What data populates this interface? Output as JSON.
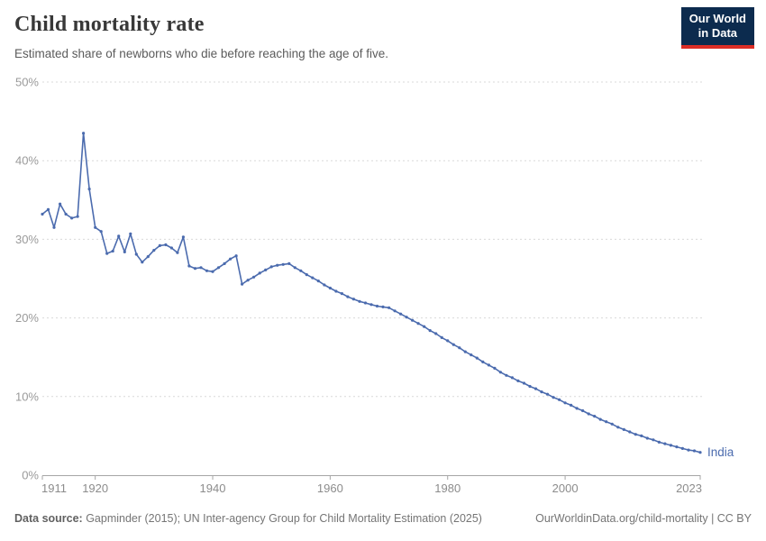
{
  "header": {
    "title": "Child mortality rate",
    "subtitle": "Estimated share of newborns who die before reaching the age of five.",
    "logo_line1": "Our World",
    "logo_line2": "in Data"
  },
  "footer": {
    "source_label": "Data source:",
    "source_text": " Gapminder (2015); UN Inter-agency Group for Child Mortality Estimation (2025)",
    "link_text": "OurWorldinData.org/child-mortality | CC BY"
  },
  "colors": {
    "line": "#4b6bae",
    "entity_label": "#4b6bae",
    "grid": "#d9d9d9",
    "axis": "#a6a6a6",
    "tick_label": "#8c8c8c",
    "y_label": "#9a9a9a",
    "logo_bg": "#0c2b4e",
    "logo_red": "#dc2d25"
  },
  "chart_data": {
    "type": "line",
    "title": "Child mortality rate",
    "subtitle": "Estimated share of newborns who die before reaching the age of five.",
    "entity_label": "India",
    "grid": "horizontal-dashed",
    "legend_position": "end-of-line",
    "xlim": [
      1911,
      2023
    ],
    "ylim": [
      0,
      50
    ],
    "xticks": [
      1911,
      1920,
      1940,
      1960,
      1980,
      2000,
      2023
    ],
    "yticks": [
      0,
      10,
      20,
      30,
      40,
      50
    ],
    "ytick_labels": [
      "0%",
      "10%",
      "20%",
      "30%",
      "40%",
      "50%"
    ],
    "series": [
      {
        "name": "India",
        "x": [
          1911,
          1912,
          1913,
          1914,
          1915,
          1916,
          1917,
          1918,
          1919,
          1920,
          1921,
          1922,
          1923,
          1924,
          1925,
          1926,
          1927,
          1928,
          1929,
          1930,
          1931,
          1932,
          1933,
          1934,
          1935,
          1936,
          1937,
          1938,
          1939,
          1940,
          1941,
          1942,
          1943,
          1944,
          1945,
          1946,
          1947,
          1948,
          1949,
          1950,
          1951,
          1952,
          1953,
          1954,
          1955,
          1956,
          1957,
          1958,
          1959,
          1960,
          1961,
          1962,
          1963,
          1964,
          1965,
          1966,
          1967,
          1968,
          1969,
          1970,
          1971,
          1972,
          1973,
          1974,
          1975,
          1976,
          1977,
          1978,
          1979,
          1980,
          1981,
          1982,
          1983,
          1984,
          1985,
          1986,
          1987,
          1988,
          1989,
          1990,
          1991,
          1992,
          1993,
          1994,
          1995,
          1996,
          1997,
          1998,
          1999,
          2000,
          2001,
          2002,
          2003,
          2004,
          2005,
          2006,
          2007,
          2008,
          2009,
          2010,
          2011,
          2012,
          2013,
          2014,
          2015,
          2016,
          2017,
          2018,
          2019,
          2020,
          2021,
          2022,
          2023
        ],
        "values": [
          33.2,
          33.8,
          31.5,
          34.5,
          33.2,
          32.7,
          32.9,
          43.5,
          36.4,
          31.5,
          31.0,
          28.2,
          28.5,
          30.4,
          28.4,
          30.7,
          28.1,
          27.1,
          27.8,
          28.6,
          29.2,
          29.3,
          28.9,
          28.3,
          30.3,
          26.6,
          26.3,
          26.4,
          26.0,
          25.9,
          26.4,
          26.9,
          27.5,
          27.9,
          24.3,
          24.8,
          25.2,
          25.7,
          26.1,
          26.5,
          26.7,
          26.8,
          26.9,
          26.4,
          26.0,
          25.5,
          25.1,
          24.7,
          24.2,
          23.8,
          23.4,
          23.1,
          22.7,
          22.4,
          22.1,
          21.9,
          21.7,
          21.5,
          21.4,
          21.3,
          20.9,
          20.5,
          20.1,
          19.7,
          19.3,
          18.9,
          18.4,
          18.0,
          17.5,
          17.1,
          16.6,
          16.2,
          15.7,
          15.3,
          14.9,
          14.4,
          14.0,
          13.6,
          13.1,
          12.7,
          12.4,
          12.0,
          11.7,
          11.3,
          11.0,
          10.6,
          10.3,
          9.9,
          9.6,
          9.2,
          8.9,
          8.5,
          8.2,
          7.8,
          7.5,
          7.1,
          6.8,
          6.5,
          6.1,
          5.8,
          5.5,
          5.2,
          5.0,
          4.7,
          4.5,
          4.2,
          4.0,
          3.8,
          3.6,
          3.4,
          3.2,
          3.1,
          2.9
        ]
      }
    ]
  }
}
